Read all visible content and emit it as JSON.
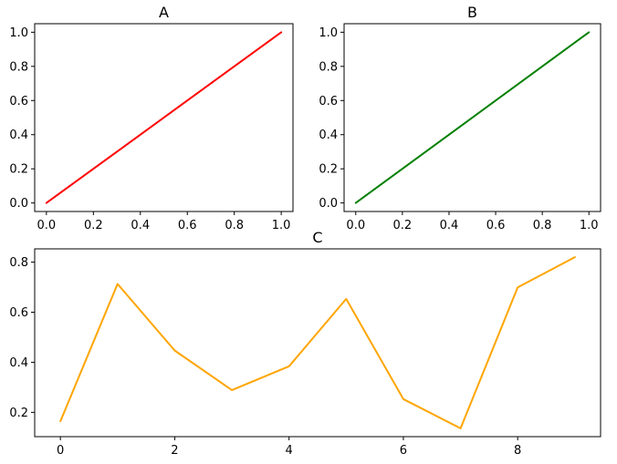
{
  "chart_data": [
    {
      "type": "line",
      "title": "A",
      "xlabel": "",
      "ylabel": "",
      "x": [
        0,
        1
      ],
      "series": [
        {
          "values": [
            0,
            1
          ],
          "color": "#ff0000"
        }
      ],
      "xlim": [
        -0.05,
        1.05
      ],
      "ylim": [
        -0.05,
        1.05
      ],
      "xticks": [
        0.0,
        0.2,
        0.4,
        0.6,
        0.8,
        1.0
      ],
      "xtick_labels": [
        "0.0",
        "0.2",
        "0.4",
        "0.6",
        "0.8",
        "1.0"
      ],
      "yticks": [
        0.0,
        0.2,
        0.4,
        0.6,
        0.8,
        1.0
      ],
      "ytick_labels": [
        "0.0",
        "0.2",
        "0.4",
        "0.6",
        "0.8",
        "1.0"
      ],
      "grid": false
    },
    {
      "type": "line",
      "title": "B",
      "xlabel": "",
      "ylabel": "",
      "x": [
        0,
        1
      ],
      "series": [
        {
          "values": [
            0,
            1
          ],
          "color": "#008000"
        }
      ],
      "xlim": [
        -0.05,
        1.05
      ],
      "ylim": [
        -0.05,
        1.05
      ],
      "xticks": [
        0.0,
        0.2,
        0.4,
        0.6,
        0.8,
        1.0
      ],
      "xtick_labels": [
        "0.0",
        "0.2",
        "0.4",
        "0.6",
        "0.8",
        "1.0"
      ],
      "yticks": [
        0.0,
        0.2,
        0.4,
        0.6,
        0.8,
        1.0
      ],
      "ytick_labels": [
        "0.0",
        "0.2",
        "0.4",
        "0.6",
        "0.8",
        "1.0"
      ],
      "grid": false
    },
    {
      "type": "line",
      "title": "C",
      "xlabel": "",
      "ylabel": "",
      "x": [
        0,
        1,
        2,
        3,
        4,
        5,
        6,
        7,
        8,
        9
      ],
      "series": [
        {
          "values": [
            0.165,
            0.713,
            0.447,
            0.289,
            0.384,
            0.653,
            0.253,
            0.136,
            0.699,
            0.82
          ],
          "color": "#ffa500"
        }
      ],
      "xlim": [
        -0.45,
        9.45
      ],
      "ylim": [
        0.103,
        0.853
      ],
      "xticks": [
        0,
        2,
        4,
        6,
        8
      ],
      "xtick_labels": [
        "0",
        "2",
        "4",
        "6",
        "8"
      ],
      "yticks": [
        0.2,
        0.4,
        0.6,
        0.8
      ],
      "ytick_labels": [
        "0.2",
        "0.4",
        "0.6",
        "0.8"
      ],
      "grid": false
    }
  ]
}
